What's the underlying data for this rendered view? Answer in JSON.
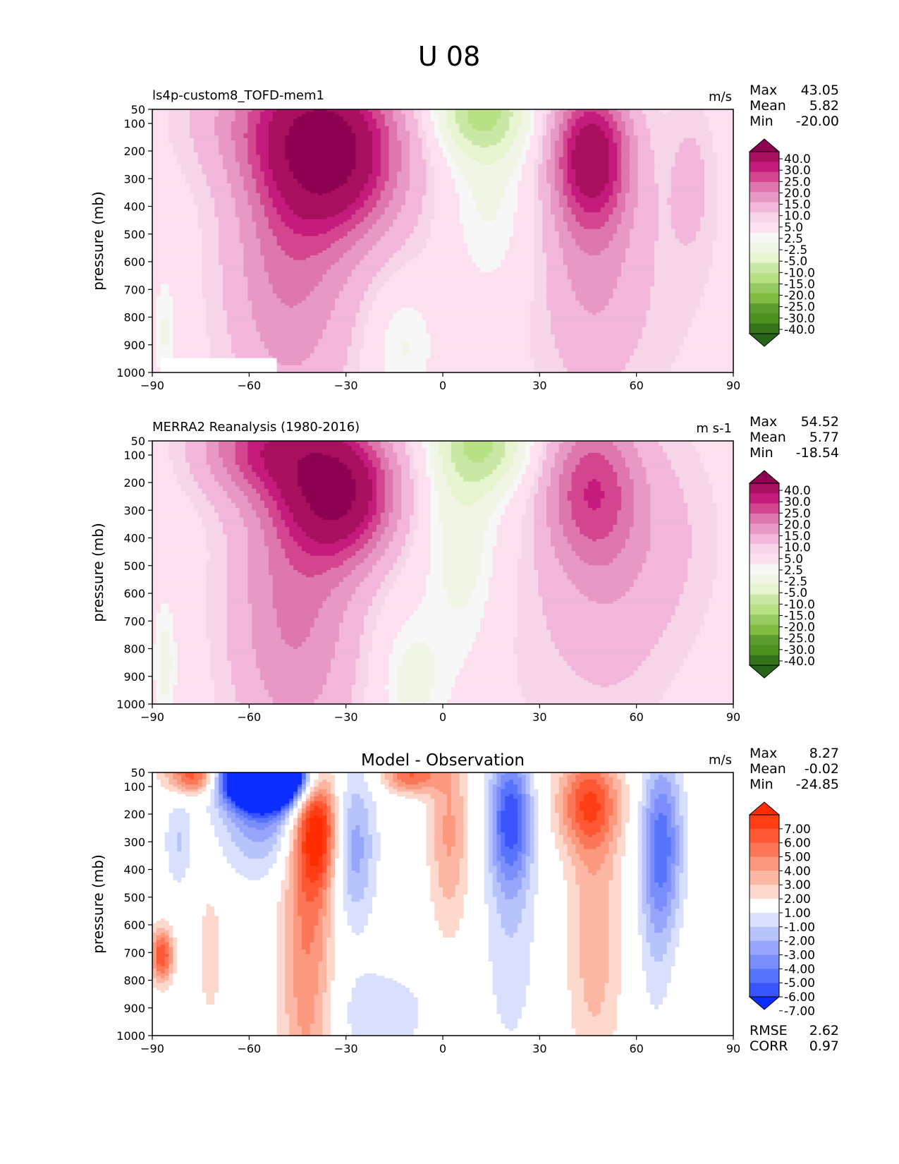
{
  "figure_title": "U 08",
  "chart_data": [
    {
      "type": "heatmap",
      "title": "ls4p-custom8_TOFD-mem1",
      "units": "m/s",
      "xlabel": "",
      "ylabel": "pressure (mb)",
      "xlim": [
        -90,
        90
      ],
      "xticks": [
        -90,
        -60,
        -30,
        0,
        30,
        60,
        90
      ],
      "xtick_labels": [
        "−90",
        "−60",
        "−30",
        "0",
        "30",
        "60",
        "90"
      ],
      "ylim": [
        50,
        1000
      ],
      "yticks": [
        50,
        100,
        200,
        300,
        400,
        500,
        600,
        700,
        800,
        900,
        1000
      ],
      "yaxis_inverted": true,
      "stats": [
        {
          "label": "Max",
          "value": "43.05"
        },
        {
          "label": "Mean",
          "value": "5.82"
        },
        {
          "label": "Min",
          "value": "-20.00"
        }
      ],
      "colorbar": {
        "levels": [
          "40.0",
          "30.0",
          "25.0",
          "20.0",
          "15.0",
          "10.0",
          "5.0",
          "2.5",
          "-2.5",
          "-5.0",
          "-10.0",
          "-15.0",
          "-20.0",
          "-25.0",
          "-30.0",
          "-40.0"
        ],
        "colors": [
          "#8e0152",
          "#a8105f",
          "#c51b7d",
          "#d4458f",
          "#de77ae",
          "#e898c4",
          "#f1b6da",
          "#f7d5e8",
          "#fde0ef",
          "#f7f7f7",
          "#f0f5e6",
          "#e6f5d0",
          "#c9e8a6",
          "#b8e186",
          "#95c961",
          "#7fbc41",
          "#5d9c31",
          "#4d9221",
          "#35731b",
          "#276419"
        ]
      },
      "features": [
        {
          "kind": "max",
          "lat": -31,
          "p": 200,
          "value": 43
        },
        {
          "kind": "max",
          "lat": 46,
          "p": 200,
          "value": 33
        },
        {
          "kind": "min",
          "lat": 12,
          "p": 80,
          "value": -20
        },
        {
          "kind": "weak-max",
          "lat": 78,
          "p": 300,
          "value": 6
        }
      ]
    },
    {
      "type": "heatmap",
      "title": "MERRA2 Reanalysis (1980-2016)",
      "units": "m s-1",
      "xlabel": "",
      "ylabel": "pressure (mb)",
      "xlim": [
        -90,
        90
      ],
      "xticks": [
        -90,
        -60,
        -30,
        0,
        30,
        60,
        90
      ],
      "xtick_labels": [
        "−90",
        "−60",
        "−30",
        "0",
        "30",
        "60",
        "90"
      ],
      "ylim": [
        50,
        1000
      ],
      "yticks": [
        50,
        100,
        200,
        300,
        400,
        500,
        600,
        700,
        800,
        900,
        1000
      ],
      "yaxis_inverted": true,
      "stats": [
        {
          "label": "Max",
          "value": "54.52"
        },
        {
          "label": "Mean",
          "value": "5.77"
        },
        {
          "label": "Min",
          "value": "-18.54"
        }
      ],
      "colorbar": {
        "levels": [
          "40.0",
          "30.0",
          "25.0",
          "20.0",
          "15.0",
          "10.0",
          "5.0",
          "2.5",
          "-2.5",
          "-5.0",
          "-10.0",
          "-15.0",
          "-20.0",
          "-25.0",
          "-30.0",
          "-40.0"
        ],
        "colors": [
          "#8e0152",
          "#a8105f",
          "#c51b7d",
          "#d4458f",
          "#de77ae",
          "#e898c4",
          "#f1b6da",
          "#f7d5e8",
          "#fde0ef",
          "#f7f7f7",
          "#f0f5e6",
          "#e6f5d0",
          "#c9e8a6",
          "#b8e186",
          "#95c961",
          "#7fbc41",
          "#5d9c31",
          "#4d9221",
          "#35731b",
          "#276419"
        ]
      },
      "features": [
        {
          "kind": "max",
          "lat": -30,
          "p": 200,
          "value": 48
        },
        {
          "kind": "max",
          "lat": -55,
          "p": 60,
          "value": 44
        },
        {
          "kind": "max",
          "lat": 46,
          "p": 200,
          "value": 22
        },
        {
          "kind": "min",
          "lat": 13,
          "p": 80,
          "value": -19
        }
      ]
    },
    {
      "type": "heatmap",
      "title": "Model - Observation",
      "units": "m/s",
      "xlabel": "",
      "ylabel": "pressure (mb)",
      "xlim": [
        -90,
        90
      ],
      "xticks": [
        -90,
        -60,
        -30,
        0,
        30,
        60,
        90
      ],
      "xtick_labels": [
        "−90",
        "−60",
        "−30",
        "0",
        "30",
        "60",
        "90"
      ],
      "ylim": [
        50,
        1000
      ],
      "yticks": [
        50,
        100,
        200,
        300,
        400,
        500,
        600,
        700,
        800,
        900,
        1000
      ],
      "yaxis_inverted": true,
      "stats": [
        {
          "label": "Max",
          "value": "8.27"
        },
        {
          "label": "Mean",
          "value": "-0.02"
        },
        {
          "label": "Min",
          "value": "-24.85"
        }
      ],
      "extra_stats": [
        {
          "label": "RMSE",
          "value": "2.62"
        },
        {
          "label": "CORR",
          "value": "0.97"
        }
      ],
      "colorbar": {
        "levels": [
          "7.00",
          "6.00",
          "5.00",
          "4.00",
          "3.00",
          "2.00",
          "1.00",
          "-1.00",
          "-2.00",
          "-3.00",
          "-4.00",
          "-5.00",
          "-6.00",
          "-7.00"
        ],
        "colors": [
          "#ff2c00",
          "#ff3d14",
          "#fe5733",
          "#fc7658",
          "#fb997f",
          "#fcb7a4",
          "#fdd8cc",
          "#ffffff",
          "#d8e0fd",
          "#b7c4fc",
          "#97a6fb",
          "#7a8efb",
          "#5774fc",
          "#3a55fd",
          "#0c2dff"
        ]
      },
      "features": [
        {
          "kind": "max",
          "lat": -77,
          "p": 60,
          "value": 6
        },
        {
          "kind": "max",
          "lat": -10,
          "p": 60,
          "value": 5
        },
        {
          "kind": "min",
          "lat": -55,
          "p": 70,
          "value": -25
        },
        {
          "kind": "max",
          "lat": -39,
          "p": 250,
          "value": 7
        },
        {
          "kind": "max",
          "lat": -87,
          "p": 700,
          "value": 6
        },
        {
          "kind": "min",
          "lat": -28,
          "p": 300,
          "value": -4
        },
        {
          "kind": "max",
          "lat": 2,
          "p": 250,
          "value": 3
        },
        {
          "kind": "min",
          "lat": 21,
          "p": 200,
          "value": -6
        },
        {
          "kind": "max",
          "lat": 45,
          "p": 150,
          "value": 5
        },
        {
          "kind": "min",
          "lat": 68,
          "p": 300,
          "value": -5
        }
      ]
    }
  ]
}
